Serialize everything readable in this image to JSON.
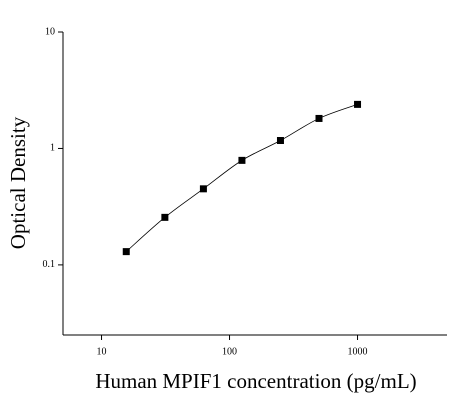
{
  "chart_data": {
    "type": "scatter",
    "x_label": "Human MPIF1 concentration (pg/mL)",
    "y_label": "Optical Density",
    "x": [
      15.6,
      31.25,
      62.5,
      125,
      250,
      500,
      1000
    ],
    "values": [
      0.13,
      0.256,
      0.45,
      0.79,
      1.17,
      1.81,
      2.39
    ],
    "color": "#000000",
    "fit_line": true,
    "xscale": "log",
    "yscale": "log",
    "xlim": [
      5,
      5000
    ],
    "ylim": [
      0.025,
      10
    ],
    "xticks": [
      10,
      100,
      1000
    ],
    "yticks": [
      0.1,
      1,
      10
    ],
    "grid": false
  }
}
